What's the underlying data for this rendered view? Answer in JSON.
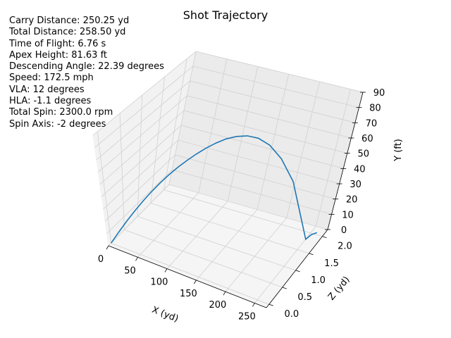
{
  "chart_data": {
    "type": "line",
    "projection": "3d",
    "title": "Shot Trajectory",
    "xlabel": "X (yd)",
    "ylabel": "Y (ft)",
    "zlabel": "Z (yd)",
    "xlim": [
      0,
      270
    ],
    "ylim": [
      0,
      90
    ],
    "zlim": [
      -0.1,
      2.2
    ],
    "x_ticks": [
      "0",
      "50",
      "100",
      "150",
      "200",
      "250"
    ],
    "y_ticks": [
      "0",
      "10",
      "20",
      "30",
      "40",
      "50",
      "60",
      "70",
      "80",
      "90"
    ],
    "z_ticks": [
      "0.0",
      "0.5",
      "1.0",
      "1.5",
      "2.0"
    ],
    "grid": true,
    "line_color": "#1f77b4",
    "series": [
      {
        "x": [
          0,
          12.5,
          25,
          37.5,
          50,
          62.5,
          75,
          87.5,
          100,
          112.5,
          125,
          137.5,
          150,
          162.5,
          175,
          187.5,
          200,
          212.5,
          225,
          237.5,
          250.25,
          254.4,
          258.5
        ],
        "y": [
          0,
          10.9,
          21.0,
          30.3,
          38.9,
          46.7,
          53.7,
          60.0,
          65.5,
          70.2,
          74.2,
          77.5,
          80.0,
          81.5,
          81.6,
          80.2,
          76.6,
          69.8,
          58.5,
          40.9,
          0,
          0.9,
          0
        ],
        "z": [
          0,
          0.02,
          0.04,
          0.07,
          0.1,
          0.14,
          0.19,
          0.24,
          0.3,
          0.37,
          0.45,
          0.54,
          0.64,
          0.75,
          0.87,
          1.0,
          1.14,
          1.29,
          1.45,
          1.62,
          1.81,
          1.93,
          2.05
        ]
      }
    ]
  },
  "stats": [
    "Carry Distance: 250.25 yd",
    "Total Distance: 258.50 yd",
    "Time of Flight: 6.76 s",
    "Apex Height: 81.63 ft",
    "Descending Angle: 22.39 degrees",
    "Speed: 172.5 mph",
    "VLA: 12 degrees",
    "HLA: -1.1 degrees",
    "Total Spin: 2300.0 rpm",
    "Spin Axis: -2 degrees"
  ]
}
